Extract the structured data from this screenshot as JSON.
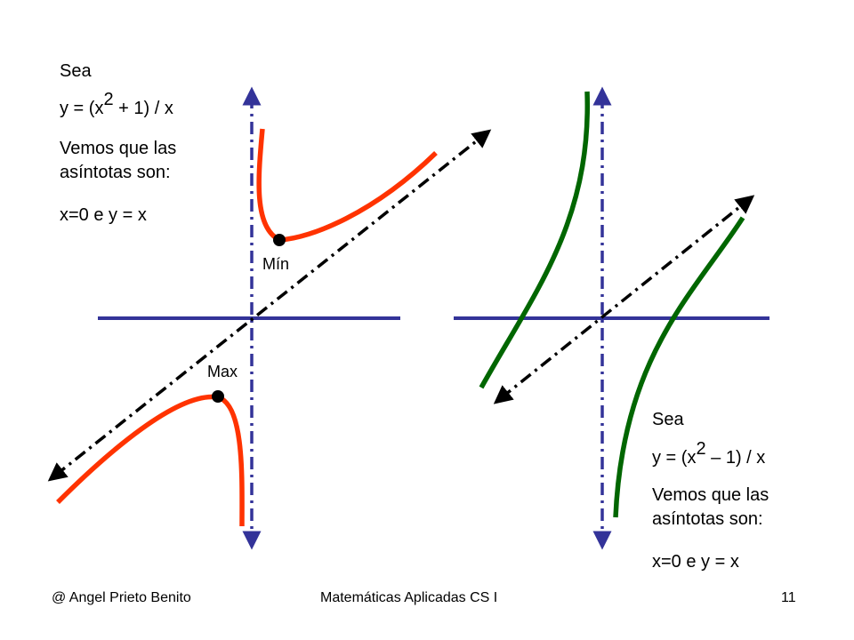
{
  "left_panel": {
    "sea": "Sea",
    "eq_prefix": "y = (x",
    "eq_exp": "2",
    "eq_suffix": " + 1) / x",
    "line1": "Vemos que las",
    "line2": "asíntotas son:",
    "asymptotes": "x=0  e  y = x",
    "min_label": "Mín",
    "max_label": "Max"
  },
  "right_panel": {
    "sea": "Sea",
    "eq_prefix": "y = (x",
    "eq_exp": "2",
    "eq_suffix": " – 1) / x",
    "line1": "Vemos que las",
    "line2": "asíntotas son:",
    "asymptotes": "x=0  e  y = x"
  },
  "footer": {
    "author": "@   Angel Prieto Benito",
    "course": "Matemáticas Aplicadas CS I",
    "page": "11"
  },
  "colors": {
    "axis": "#333399",
    "curve_left": "#ff3300",
    "curve_right": "#006600",
    "asymptote": "#000000",
    "point": "#000000"
  }
}
